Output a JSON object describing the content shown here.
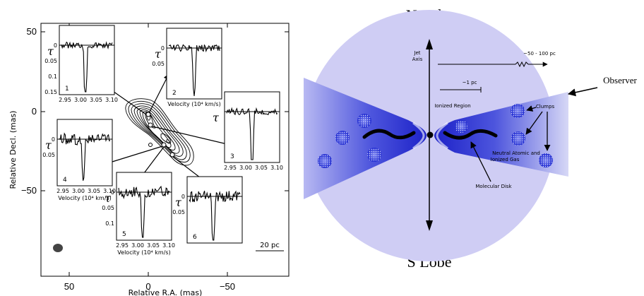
{
  "left_panel": {
    "xlabel": "Relative R.A. (mas)",
    "ylabel": "Relative Decl. (mas)",
    "x_ticks": [
      "50",
      "0",
      "−50"
    ],
    "y_ticks": [
      "50",
      "0",
      "−50"
    ],
    "scale_bar": "20 pc",
    "insets": [
      {
        "id": "1",
        "tau_label": "τ",
        "yticks": [
          "0",
          "0.05",
          "0.1",
          "0.15"
        ],
        "xticks": [
          "2.95",
          "3.00",
          "3.05",
          "3.10"
        ],
        "xlabel": ""
      },
      {
        "id": "2",
        "tau_label": "τ",
        "yticks": [
          "0",
          "0.05"
        ],
        "xticks": [],
        "xlabel": "Velocity (10⁴ km/s)"
      },
      {
        "id": "3",
        "tau_label": "τ",
        "yticks": [],
        "xticks": [
          "2.95",
          "3.00",
          "3.05",
          "3.10"
        ],
        "xlabel": ""
      },
      {
        "id": "4",
        "tau_label": "τ",
        "yticks": [
          "0",
          "0.05"
        ],
        "xticks": [
          "2.95",
          "3.00",
          "3.05",
          "3.10"
        ],
        "xlabel": "Velocity (10⁴ km/s)"
      },
      {
        "id": "5",
        "tau_label": "τ",
        "yticks": [
          "0",
          "0.05",
          "0.1"
        ],
        "xticks": [
          "2.95",
          "3.00",
          "3.05",
          "3.10"
        ],
        "xlabel": "Velocity (10⁴ km/s)"
      },
      {
        "id": "6",
        "tau_label": "τ",
        "yticks": [
          "0",
          "0.05"
        ],
        "xticks": [],
        "xlabel": ""
      }
    ]
  },
  "right_panel": {
    "n_lobe": "N Lobe",
    "s_lobe": "S Lobe",
    "jet_axis_line1": "Jet",
    "jet_axis_line2": "Axis",
    "scale_large": "~50 - 100 pc",
    "scale_small": "~1 pc",
    "ionized_region": "Ionized Region",
    "clumps": "Clumps",
    "observer": "Observer",
    "neutral_line1": "Neutral Atomic and",
    "neutral_line2": "Ionized Gas",
    "molecular_disk": "Molecular Disk",
    "colors": {
      "lobe": "#cfcdf4",
      "cone_dark": "#1d22c8",
      "clump": "#2a35d6"
    }
  }
}
